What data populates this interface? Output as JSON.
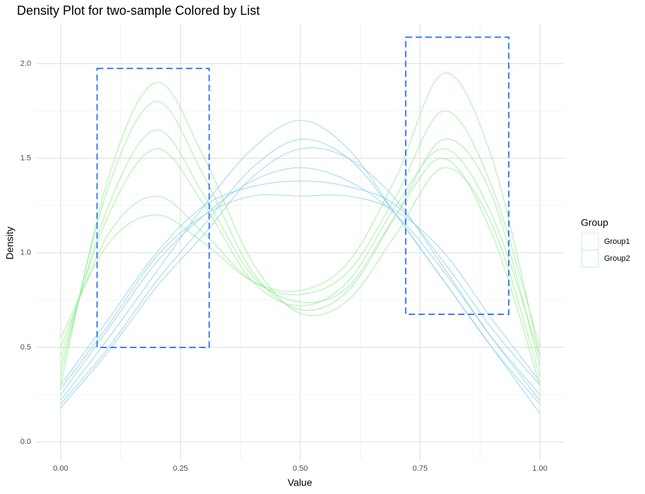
{
  "chart_data": {
    "type": "density-lines",
    "title": "Density Plot for two-sample Colored by List",
    "x_label": "Value",
    "y_label": "Density",
    "legend_title": "Group",
    "legend_position": "right",
    "xlim": [
      -0.05,
      1.05
    ],
    "ylim": [
      -0.1,
      2.21
    ],
    "xticks": [
      {
        "value": 0,
        "label": "0.00"
      },
      {
        "value": 0.25,
        "label": "0.25"
      },
      {
        "value": 0.5,
        "label": "0.50"
      },
      {
        "value": 0.75,
        "label": "0.75"
      },
      {
        "value": 1,
        "label": "1.00"
      }
    ],
    "yticks": [
      {
        "value": 0,
        "label": "0.0"
      },
      {
        "value": 0.5,
        "label": "0.5"
      },
      {
        "value": 1,
        "label": "1.0"
      },
      {
        "value": 1.5,
        "label": "1.5"
      },
      {
        "value": 2,
        "label": "2.0"
      }
    ],
    "x_minor_ticks": [
      0.125,
      0.375,
      0.625,
      0.875
    ],
    "y_minor_ticks": [
      0.25,
      0.75,
      1.25,
      1.75
    ],
    "grid": true,
    "x": [
      0,
      0.1,
      0.2,
      0.3,
      0.4,
      0.5,
      0.6,
      0.7,
      0.8,
      0.9,
      1.0
    ],
    "series": [
      {
        "name": "Group1",
        "color": "#90EE90",
        "curves": [
          [
            0.45,
            1.2,
            1.55,
            1.25,
            0.85,
            0.72,
            0.85,
            1.25,
            1.55,
            1.2,
            0.45
          ],
          [
            0.35,
            1.35,
            1.8,
            1.4,
            0.9,
            0.7,
            0.8,
            1.2,
            1.6,
            1.3,
            0.4
          ],
          [
            0.5,
            1.1,
            1.3,
            1.1,
            0.85,
            0.78,
            0.9,
            1.3,
            1.75,
            1.35,
            0.5
          ],
          [
            0.3,
            1.4,
            1.9,
            1.5,
            0.95,
            0.68,
            0.75,
            1.1,
            1.45,
            1.15,
            0.35
          ],
          [
            0.55,
            1.05,
            1.2,
            1.05,
            0.85,
            0.8,
            0.95,
            1.4,
            1.95,
            1.5,
            0.45
          ],
          [
            0.4,
            1.25,
            1.65,
            1.3,
            0.88,
            0.74,
            0.82,
            1.2,
            1.5,
            1.1,
            0.3
          ]
        ]
      },
      {
        "name": "Group2",
        "color": "#87CEEB",
        "curves": [
          [
            0.25,
            0.6,
            0.95,
            1.2,
            1.38,
            1.45,
            1.38,
            1.2,
            0.9,
            0.55,
            0.25
          ],
          [
            0.2,
            0.5,
            0.85,
            1.15,
            1.45,
            1.6,
            1.5,
            1.2,
            0.85,
            0.5,
            0.2
          ],
          [
            0.3,
            0.65,
            1.0,
            1.25,
            1.35,
            1.38,
            1.35,
            1.25,
            0.95,
            0.6,
            0.3
          ],
          [
            0.22,
            0.55,
            0.9,
            1.25,
            1.55,
            1.7,
            1.55,
            1.2,
            0.85,
            0.5,
            0.15
          ],
          [
            0.28,
            0.62,
            0.98,
            1.2,
            1.3,
            1.3,
            1.3,
            1.22,
            1.0,
            0.65,
            0.32
          ],
          [
            0.18,
            0.48,
            0.82,
            1.1,
            1.4,
            1.55,
            1.5,
            1.28,
            0.92,
            0.55,
            0.22
          ]
        ]
      }
    ],
    "annotations": [
      {
        "type": "rect",
        "color": "#3a7cf5",
        "xlim": [
          0.076,
          0.31
        ],
        "ylim": [
          0.5,
          1.975
        ]
      },
      {
        "type": "rect",
        "color": "#3a7cf5",
        "xlim": [
          0.72,
          0.935
        ],
        "ylim": [
          0.675,
          2.14
        ]
      }
    ]
  }
}
